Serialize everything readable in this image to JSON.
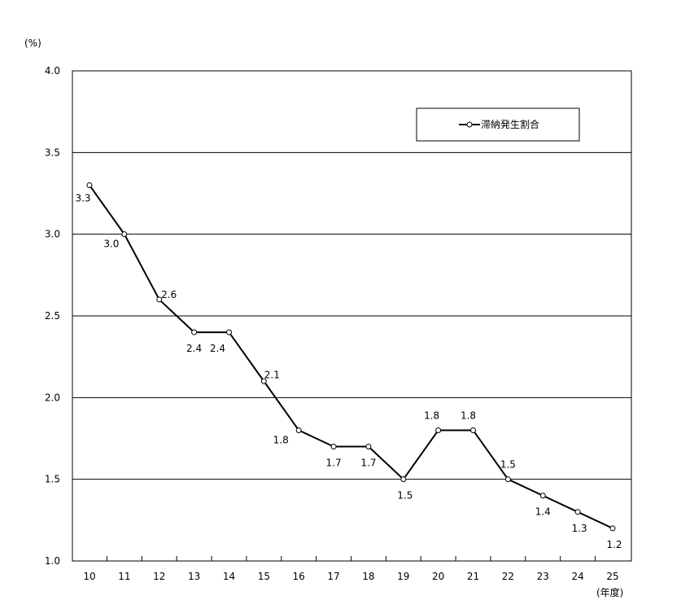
{
  "chart_data": {
    "type": "line",
    "title": "",
    "ylabel": "(%)",
    "xlabel": "(年度)",
    "ylim": [
      1.0,
      4.0
    ],
    "yticks": [
      "1.0",
      "1.5",
      "2.0",
      "2.5",
      "3.0",
      "3.5",
      "4.0"
    ],
    "grid": true,
    "legend_position": "top-right",
    "categories": [
      "10",
      "11",
      "12",
      "13",
      "14",
      "15",
      "16",
      "17",
      "18",
      "19",
      "20",
      "21",
      "22",
      "23",
      "24",
      "25"
    ],
    "series": [
      {
        "name": "滞納発生割合",
        "values": [
          3.3,
          3.0,
          2.6,
          2.4,
          2.4,
          2.1,
          1.8,
          1.7,
          1.7,
          1.5,
          1.8,
          1.8,
          1.5,
          1.4,
          1.3,
          1.2
        ],
        "labels": [
          "3.3",
          "3.0",
          "2.6",
          "2.4",
          "2.4",
          "2.1",
          "1.8",
          "1.7",
          "1.7",
          "1.5",
          "1.8",
          "1.8",
          "1.5",
          "1.4",
          "1.3",
          "1.2"
        ],
        "color": "#000000"
      }
    ]
  }
}
